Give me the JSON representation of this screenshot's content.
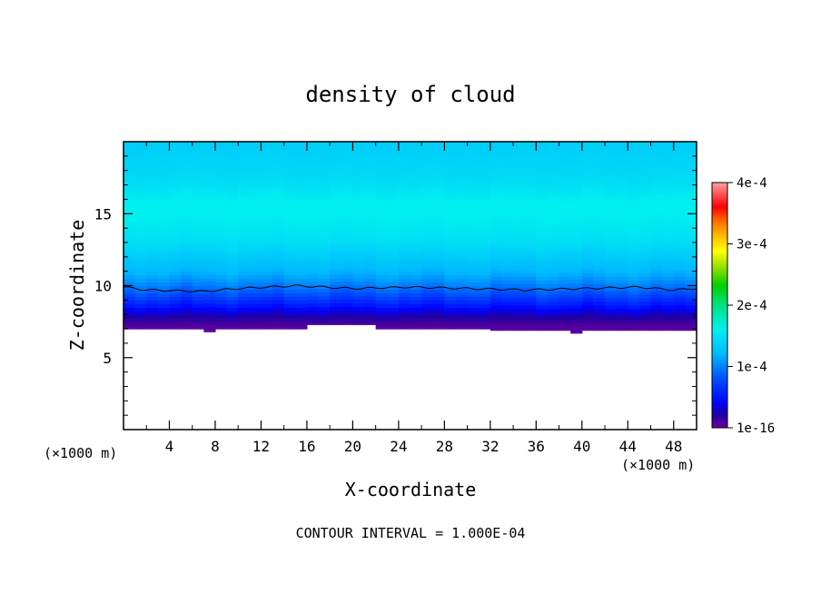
{
  "chart_data": {
    "type": "heatmap",
    "title": "density of cloud",
    "xlabel": "X-coordinate",
    "ylabel": "Z-coordinate",
    "x_unit_left": "(×1000 m)",
    "x_unit_right": "(×1000 m)",
    "footer": "CONTOUR INTERVAL = 1.000E-04",
    "xlim": [
      0,
      50
    ],
    "ylim": [
      0,
      20
    ],
    "x_ticks": [
      4,
      8,
      12,
      16,
      20,
      24,
      28,
      32,
      36,
      40,
      44,
      48
    ],
    "y_ticks": [
      5,
      10,
      15
    ],
    "colorbar": {
      "min": 0,
      "max": 0.0004,
      "tick_labels": [
        "1e-16",
        "1e-4",
        "2e-4",
        "3e-4",
        "4e-4"
      ],
      "tick_values": [
        0,
        0.0001,
        0.0002,
        0.0003,
        0.0004
      ]
    },
    "cloud_base_z": [
      [
        0,
        7.0
      ],
      [
        7.2,
        7.0
      ],
      [
        7.5,
        6.8
      ],
      [
        7.8,
        7.0
      ],
      [
        16,
        7.0
      ],
      [
        16.3,
        7.3
      ],
      [
        21.5,
        7.3
      ],
      [
        21.8,
        6.8
      ],
      [
        22.2,
        7.0
      ],
      [
        32,
        7.0
      ],
      [
        32.5,
        6.9
      ],
      [
        38.5,
        6.9
      ],
      [
        39.0,
        6.7
      ],
      [
        39.6,
        6.7
      ],
      [
        40.2,
        6.9
      ],
      [
        46.5,
        6.9
      ],
      [
        47.0,
        6.6
      ],
      [
        47.5,
        6.9
      ],
      [
        50,
        6.9
      ]
    ],
    "contour_line_1e-4_z": [
      [
        0,
        9.9
      ],
      [
        2,
        9.7
      ],
      [
        7,
        9.6
      ],
      [
        10,
        9.8
      ],
      [
        15,
        10.0
      ],
      [
        20,
        9.8
      ],
      [
        25,
        9.9
      ],
      [
        30,
        9.8
      ],
      [
        35,
        9.7
      ],
      [
        40,
        9.8
      ],
      [
        45,
        9.9
      ],
      [
        48,
        9.7
      ],
      [
        50,
        9.8
      ]
    ],
    "profile_z_value": [
      [
        7.0,
        5e-06
      ],
      [
        7.5,
        1.5e-05
      ],
      [
        8.0,
        3e-05
      ],
      [
        8.5,
        5e-05
      ],
      [
        9.0,
        6.8e-05
      ],
      [
        9.5,
        8.5e-05
      ],
      [
        10.0,
        0.0001
      ],
      [
        10.5,
        0.000112
      ],
      [
        11.0,
        0.000122
      ],
      [
        11.5,
        0.000128
      ],
      [
        12.0,
        0.000135
      ],
      [
        12.5,
        0.000142
      ],
      [
        13.0,
        0.000148
      ],
      [
        14.0,
        0.000155
      ],
      [
        15.0,
        0.00016
      ],
      [
        16.0,
        0.000158
      ],
      [
        16.5,
        0.000152
      ],
      [
        17.0,
        0.000146
      ],
      [
        18.0,
        0.000142
      ],
      [
        19.0,
        0.000138
      ],
      [
        20.0,
        0.000135
      ]
    ]
  }
}
